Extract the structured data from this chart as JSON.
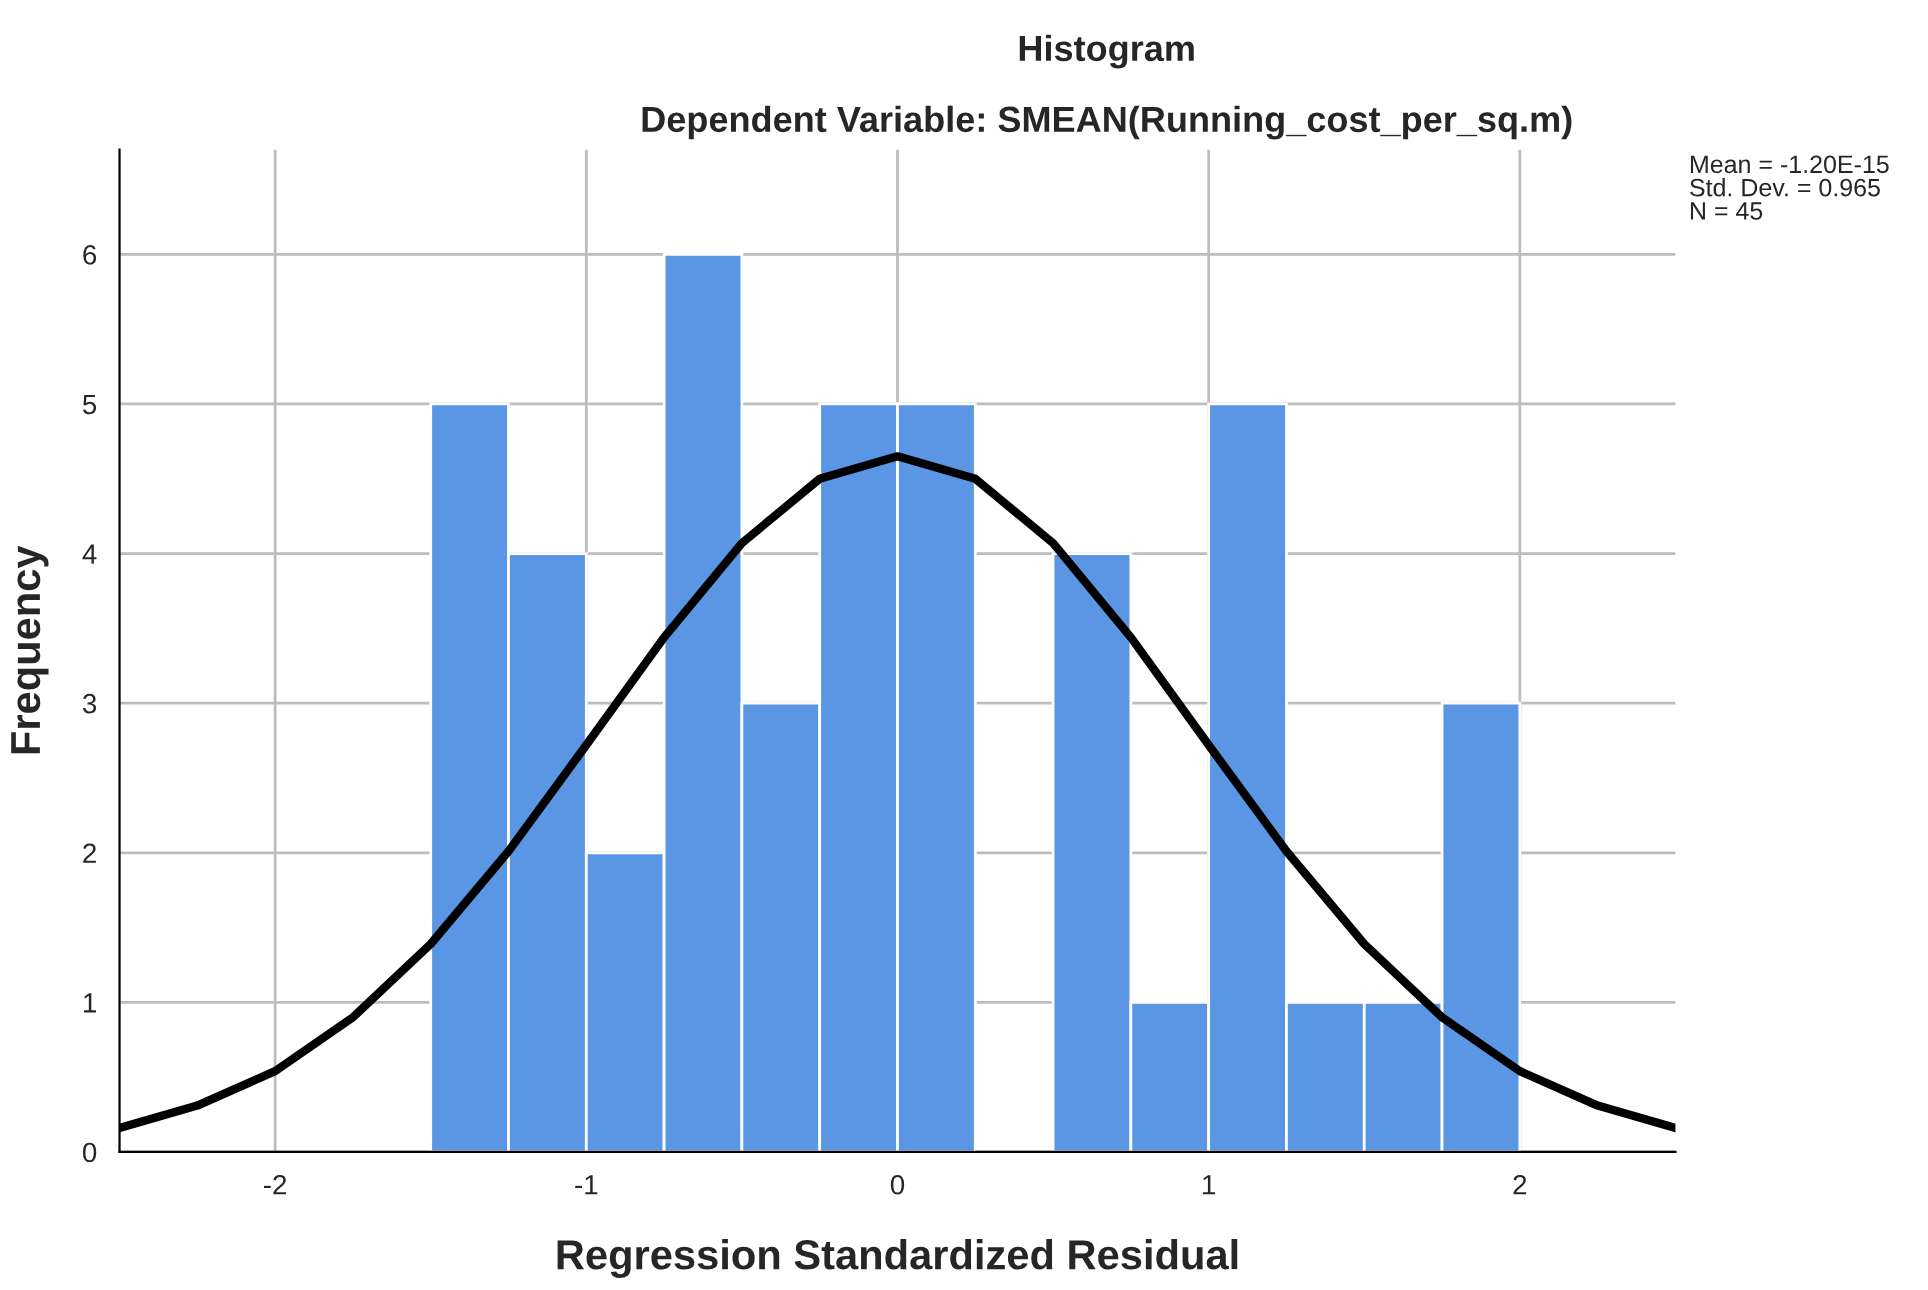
{
  "chart_data": {
    "type": "histogram",
    "title": "Histogram",
    "subtitle": "Dependent Variable: SMEAN(Running_cost_per_sq.m)",
    "xlabel": "Regression Standardized Residual",
    "ylabel": "Frequency",
    "annotations": [
      "Mean = -1.20E-15\nStd. Dev. = 0.965\nN = 45"
    ],
    "bins": [
      -1.5,
      -1.25,
      -1.0,
      -0.75,
      -0.5,
      -0.25,
      0.0,
      0.25,
      0.5,
      0.75,
      1.0,
      1.25,
      1.5,
      1.75,
      2.0
    ],
    "values": [
      5,
      4,
      2,
      6,
      3,
      5,
      5,
      0,
      4,
      1,
      5,
      1,
      1,
      3
    ],
    "color": "#5a96e3",
    "series": [
      {
        "type": "line",
        "color": "#000000",
        "x": [
          -2.5,
          -2.25,
          -2.0,
          -1.75,
          -1.5,
          -1.25,
          -1.0,
          -0.75,
          -0.5,
          -0.25,
          0.0,
          0.25,
          0.5,
          0.75,
          1.0,
          1.25,
          1.5,
          1.75,
          2.0,
          2.25,
          2.5
        ],
        "values": [
          0.16,
          0.31,
          0.54,
          0.9,
          1.39,
          2.01,
          2.72,
          3.44,
          4.07,
          4.5,
          4.65,
          4.5,
          4.07,
          3.44,
          2.72,
          2.01,
          1.39,
          0.9,
          0.54,
          0.31,
          0.16
        ]
      }
    ],
    "xlim": [
      -2.5,
      2.5
    ],
    "xticks": [
      -2,
      -1,
      0,
      1,
      2
    ],
    "ylim": [
      0,
      6.7
    ],
    "yticks": [
      0,
      1,
      2,
      3,
      4,
      5,
      6
    ],
    "grid": true,
    "legend": false
  }
}
